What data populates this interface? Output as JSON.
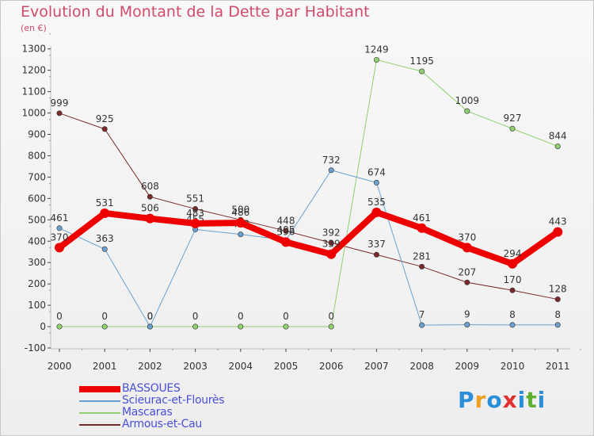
{
  "title": "Evolution du Montant de la Dette par Habitant",
  "subtitle": "(en €)",
  "logo": {
    "text": "Proxiti",
    "letters": [
      "P",
      "r",
      "o",
      "x",
      "i",
      "t",
      "i"
    ],
    "colors": [
      "#2a8fd8",
      "#f0a020",
      "#2a8fd8",
      "#e03030",
      "#2a8fd8",
      "#60b030",
      "#2a8fd8"
    ]
  },
  "chart_data": {
    "type": "line",
    "x": [
      "2000",
      "2001",
      "2002",
      "2003",
      "2004",
      "2005",
      "2006",
      "2007",
      "2008",
      "2009",
      "2010",
      "2011"
    ],
    "ylim": [
      -100,
      1300
    ],
    "yticks": [
      -100,
      0,
      100,
      200,
      300,
      400,
      500,
      600,
      700,
      800,
      900,
      1000,
      1100,
      1200,
      1300
    ],
    "grid": false,
    "legend_position": "bottom-left",
    "series": [
      {
        "name": "Armous-et-Cau",
        "color": "#7a2a2a",
        "width": 1,
        "values": [
          999,
          925,
          608,
          551,
          500,
          448,
          392,
          337,
          281,
          207,
          170,
          128
        ],
        "labels": [
          "999",
          "925",
          "608",
          "551",
          "500",
          "448",
          "392",
          "337",
          "281",
          "207",
          "170",
          "128"
        ]
      },
      {
        "name": "Mascaras",
        "color": "#90d070",
        "width": 1,
        "values": [
          0,
          0,
          0,
          0,
          0,
          0,
          0,
          1249,
          1195,
          1009,
          927,
          844
        ],
        "labels": [
          "0",
          "0",
          "0",
          "0",
          "0",
          "0",
          "0",
          "1249",
          "1195",
          "1009",
          "927",
          "844"
        ]
      },
      {
        "name": "Scieurac-et-Flourès",
        "color": "#6aa0d0",
        "width": 1,
        "values": [
          461,
          363,
          0,
          455,
          432,
          405,
          732,
          674,
          7,
          9,
          8,
          8
        ],
        "labels": [
          "461",
          "363",
          "0",
          "455",
          "432",
          "405",
          "732",
          "674",
          "7",
          "9",
          "8",
          "8"
        ]
      },
      {
        "name": "BASSOUES",
        "color": "#ee0000",
        "width": 8,
        "values": [
          370,
          531,
          506,
          483,
          486,
          396,
          339,
          535,
          461,
          370,
          294,
          443
        ],
        "labels": [
          "370",
          "531",
          "506",
          "483",
          "486",
          "396",
          "339",
          "535",
          "461",
          "370",
          "294",
          "443"
        ]
      }
    ],
    "legend_order": [
      "BASSOUES",
      "Scieurac-et-Flourès",
      "Mascaras",
      "Armous-et-Cau"
    ]
  }
}
